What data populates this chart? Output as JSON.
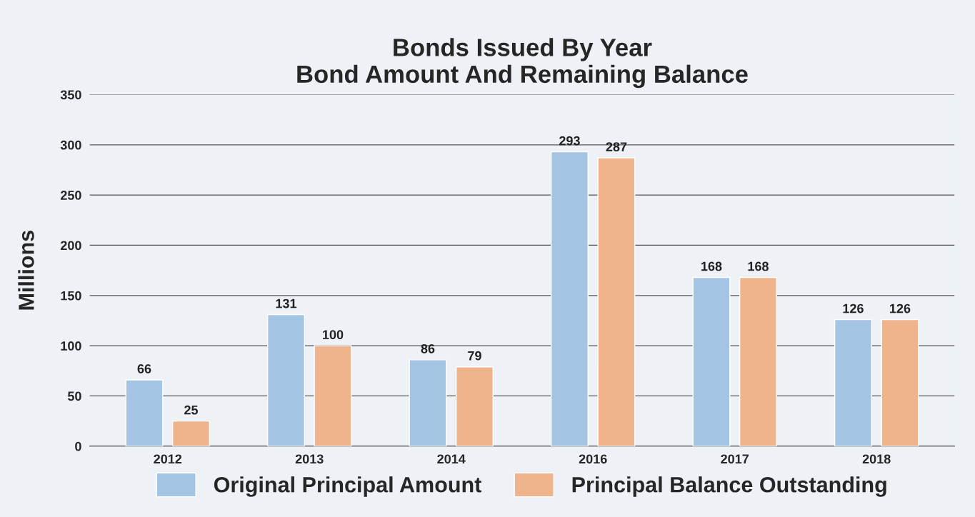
{
  "chart_data": {
    "type": "bar",
    "title": "Bonds Issued By Year\nBond Amount And Remaining Balance",
    "ylabel": "Millions",
    "categories": [
      "2012",
      "2013",
      "2014",
      "2016",
      "2017",
      "2018"
    ],
    "series": [
      {
        "name": "Original Principal Amount",
        "color": "#a4c4e4",
        "values": [
          66,
          131,
          86,
          293,
          168,
          126
        ]
      },
      {
        "name": "Principal Balance Outstanding",
        "color": "#f0b48c",
        "values": [
          25,
          100,
          79,
          287,
          168,
          126
        ]
      }
    ],
    "ylim": [
      0,
      350
    ],
    "yticks": [
      0,
      50,
      100,
      150,
      200,
      250,
      300,
      350
    ],
    "grid": "y",
    "legend": "bottom",
    "data_labels": true
  }
}
